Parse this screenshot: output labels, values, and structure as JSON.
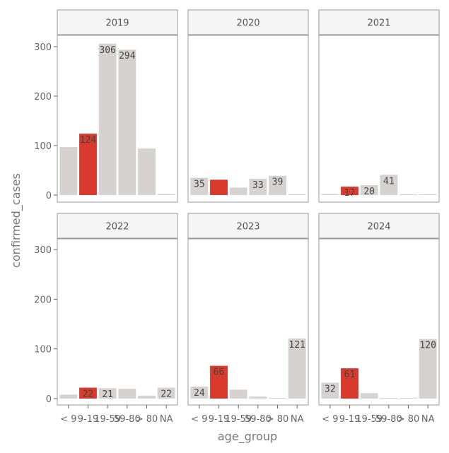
{
  "chart_data": {
    "type": "bar",
    "faceted": true,
    "xlabel": "age_group",
    "ylabel": "confirmed_cases",
    "ylim": [
      0,
      320
    ],
    "yticks": [
      0,
      100,
      200,
      300
    ],
    "categories": [
      "< 9",
      "9-19",
      "19-59",
      "59-80",
      "> 80",
      "NA"
    ],
    "highlight_category": "9-19",
    "colors": {
      "bar": "#d6d2d2",
      "highlight": "#d83b2e",
      "panel_border": "#999999",
      "strip_fill": "#f5f5f5"
    },
    "grid": false,
    "panels": [
      {
        "title": "2019",
        "values": [
          97,
          124,
          306,
          294,
          94,
          2
        ],
        "labels": [
          "",
          "124",
          "306",
          "294",
          "",
          ""
        ]
      },
      {
        "title": "2020",
        "values": [
          35,
          31,
          15,
          33,
          39,
          1
        ],
        "labels": [
          "35",
          "",
          "",
          "33",
          "39",
          ""
        ]
      },
      {
        "title": "2021",
        "values": [
          2,
          17,
          20,
          41,
          1,
          1
        ],
        "labels": [
          "",
          "17",
          "20",
          "41",
          "",
          ""
        ]
      },
      {
        "title": "2022",
        "values": [
          8,
          22,
          21,
          20,
          6,
          22
        ],
        "labels": [
          "",
          "22",
          "21",
          "",
          "",
          "22"
        ]
      },
      {
        "title": "2023",
        "values": [
          24,
          66,
          18,
          4,
          1,
          121
        ],
        "labels": [
          "24",
          "66",
          "",
          "",
          "",
          "121"
        ]
      },
      {
        "title": "2024",
        "values": [
          32,
          61,
          11,
          1,
          1,
          120
        ],
        "labels": [
          "32",
          "61",
          "",
          "",
          "",
          "120"
        ]
      }
    ]
  }
}
